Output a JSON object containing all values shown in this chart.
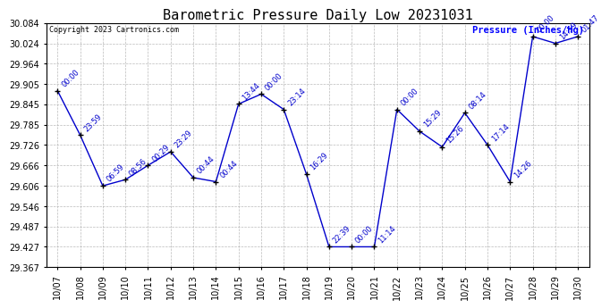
{
  "title": "Barometric Pressure Daily Low 20231031",
  "copyright_text": "Copyright 2023 Cartronics.com",
  "ylabel": "Pressure (Inches/Hg)",
  "background_color": "#ffffff",
  "line_color": "#0000cc",
  "marker_color": "#000000",
  "grid_color": "#aaaaaa",
  "title_color": "#000000",
  "ylabel_color": "#0000ff",
  "annotation_color": "#0000cc",
  "data_points": [
    {
      "x": 0,
      "date_label": "10/07",
      "time": "00:00",
      "value": 29.885
    },
    {
      "x": 1,
      "date_label": "10/08",
      "time": "23:59",
      "value": 29.755
    },
    {
      "x": 2,
      "date_label": "10/09",
      "time": "06:59",
      "value": 29.606
    },
    {
      "x": 3,
      "date_label": "10/10",
      "time": "08:56",
      "value": 29.624
    },
    {
      "x": 4,
      "date_label": "10/11",
      "time": "00:29",
      "value": 29.666
    },
    {
      "x": 5,
      "date_label": "10/12",
      "time": "23:29",
      "value": 29.706
    },
    {
      "x": 6,
      "date_label": "10/13",
      "time": "00:44",
      "value": 29.63
    },
    {
      "x": 7,
      "date_label": "10/14",
      "time": "00:44",
      "value": 29.618
    },
    {
      "x": 8,
      "date_label": "10/15",
      "time": "13:44",
      "value": 29.846
    },
    {
      "x": 9,
      "date_label": "10/16",
      "time": "00:00",
      "value": 29.875
    },
    {
      "x": 10,
      "date_label": "10/17",
      "time": "23:14",
      "value": 29.83
    },
    {
      "x": 11,
      "date_label": "10/18",
      "time": "16:29",
      "value": 29.64
    },
    {
      "x": 12,
      "date_label": "10/19",
      "time": "22:39",
      "value": 29.427
    },
    {
      "x": 13,
      "date_label": "10/20",
      "time": "00:00",
      "value": 29.427
    },
    {
      "x": 14,
      "date_label": "10/21",
      "time": "11:14",
      "value": 29.427
    },
    {
      "x": 15,
      "date_label": "10/22",
      "time": "00:00",
      "value": 29.83
    },
    {
      "x": 16,
      "date_label": "10/23",
      "time": "15:29",
      "value": 29.766
    },
    {
      "x": 17,
      "date_label": "10/24",
      "time": "15:26",
      "value": 29.72
    },
    {
      "x": 18,
      "date_label": "10/25",
      "time": "08:14",
      "value": 29.82
    },
    {
      "x": 19,
      "date_label": "10/26",
      "time": "17:14",
      "value": 29.726
    },
    {
      "x": 20,
      "date_label": "10/27",
      "time": "14:26",
      "value": 29.618
    },
    {
      "x": 21,
      "date_label": "10/28",
      "time": "00:00",
      "value": 30.044
    },
    {
      "x": 22,
      "date_label": "10/29",
      "time": "14:59",
      "value": 30.024
    },
    {
      "x": 23,
      "date_label": "10/30",
      "time": "01:47",
      "value": 30.044
    }
  ],
  "ylim_min": 29.367,
  "ylim_max": 30.084,
  "yticks": [
    29.367,
    29.427,
    29.487,
    29.546,
    29.606,
    29.666,
    29.726,
    29.785,
    29.845,
    29.905,
    29.964,
    30.024,
    30.084
  ],
  "title_fontsize": 11,
  "label_fontsize": 7.5,
  "tick_fontsize": 7,
  "annotation_fontsize": 6
}
